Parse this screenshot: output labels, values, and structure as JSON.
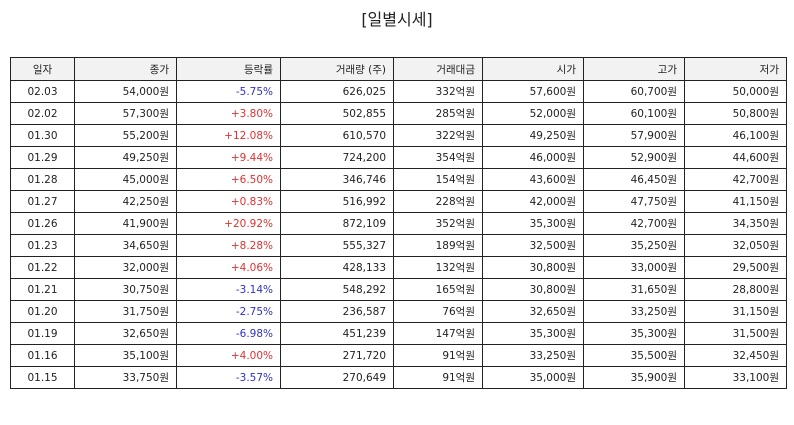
{
  "title": "[일별시세]",
  "columns": [
    "일자",
    "종가",
    "등락률",
    "거래량 (주)",
    "거래대금",
    "시가",
    "고가",
    "저가"
  ],
  "rows": [
    {
      "date": "02.03",
      "close": "54,000원",
      "change": "-5.75%",
      "dir": "down",
      "volume": "626,025",
      "amount": "332억원",
      "open": "57,600원",
      "high": "60,700원",
      "low": "50,000원"
    },
    {
      "date": "02.02",
      "close": "57,300원",
      "change": "+3.80%",
      "dir": "up",
      "volume": "502,855",
      "amount": "285억원",
      "open": "52,000원",
      "high": "60,100원",
      "low": "50,800원"
    },
    {
      "date": "01.30",
      "close": "55,200원",
      "change": "+12.08%",
      "dir": "up",
      "volume": "610,570",
      "amount": "322억원",
      "open": "49,250원",
      "high": "57,900원",
      "low": "46,100원"
    },
    {
      "date": "01.29",
      "close": "49,250원",
      "change": "+9.44%",
      "dir": "up",
      "volume": "724,200",
      "amount": "354억원",
      "open": "46,000원",
      "high": "52,900원",
      "low": "44,600원"
    },
    {
      "date": "01.28",
      "close": "45,000원",
      "change": "+6.50%",
      "dir": "up",
      "volume": "346,746",
      "amount": "154억원",
      "open": "43,600원",
      "high": "46,450원",
      "low": "42,700원"
    },
    {
      "date": "01.27",
      "close": "42,250원",
      "change": "+0.83%",
      "dir": "up",
      "volume": "516,992",
      "amount": "228억원",
      "open": "42,000원",
      "high": "47,750원",
      "low": "41,150원"
    },
    {
      "date": "01.26",
      "close": "41,900원",
      "change": "+20.92%",
      "dir": "up",
      "volume": "872,109",
      "amount": "352억원",
      "open": "35,300원",
      "high": "42,700원",
      "low": "34,350원"
    },
    {
      "date": "01.23",
      "close": "34,650원",
      "change": "+8.28%",
      "dir": "up",
      "volume": "555,327",
      "amount": "189억원",
      "open": "32,500원",
      "high": "35,250원",
      "low": "32,050원"
    },
    {
      "date": "01.22",
      "close": "32,000원",
      "change": "+4.06%",
      "dir": "up",
      "volume": "428,133",
      "amount": "132억원",
      "open": "30,800원",
      "high": "33,000원",
      "low": "29,500원"
    },
    {
      "date": "01.21",
      "close": "30,750원",
      "change": "-3.14%",
      "dir": "down",
      "volume": "548,292",
      "amount": "165억원",
      "open": "30,800원",
      "high": "31,650원",
      "low": "28,800원"
    },
    {
      "date": "01.20",
      "close": "31,750원",
      "change": "-2.75%",
      "dir": "down",
      "volume": "236,587",
      "amount": "76억원",
      "open": "32,650원",
      "high": "33,250원",
      "low": "31,150원"
    },
    {
      "date": "01.19",
      "close": "32,650원",
      "change": "-6.98%",
      "dir": "down",
      "volume": "451,239",
      "amount": "147억원",
      "open": "35,300원",
      "high": "35,300원",
      "low": "31,500원"
    },
    {
      "date": "01.16",
      "close": "35,100원",
      "change": "+4.00%",
      "dir": "up",
      "volume": "271,720",
      "amount": "91억원",
      "open": "33,250원",
      "high": "35,500원",
      "low": "32,450원"
    },
    {
      "date": "01.15",
      "close": "33,750원",
      "change": "-3.57%",
      "dir": "down",
      "volume": "270,649",
      "amount": "91억원",
      "open": "35,000원",
      "high": "35,900원",
      "low": "33,100원"
    }
  ],
  "colors": {
    "up": "#e03030",
    "down": "#3030c8"
  }
}
